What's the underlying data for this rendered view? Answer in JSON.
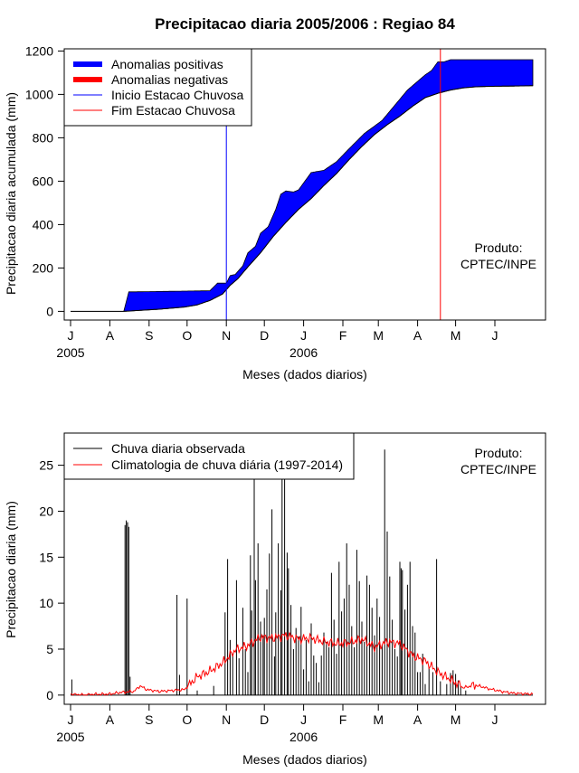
{
  "figure_title": "Precipitacao diaria 2005/2006 : Regiao 84",
  "colors": {
    "positive": "#0000ff",
    "negative": "#ff0000",
    "start_line": "#0000ff",
    "end_line": "#ff0000",
    "observed": "#000000",
    "climatology": "#ff0000"
  },
  "chart_data": [
    {
      "type": "area",
      "title": "Precipitacao diaria 2005/2006 : Regiao 84",
      "xlabel": "Meses (dados diarios)",
      "ylabel": "Precipitacao diaria acumulada (mm)",
      "xlim": [
        -5,
        375
      ],
      "ylim": [
        -40,
        1210
      ],
      "yticks": [
        0,
        200,
        400,
        600,
        800,
        1000,
        1200
      ],
      "month_ticks": [
        0,
        31,
        62,
        92,
        123,
        153,
        184,
        215,
        243,
        274,
        304,
        335
      ],
      "month_labels": [
        "J",
        "A",
        "S",
        "O",
        "N",
        "D",
        "J",
        "F",
        "M",
        "A",
        "M",
        "J"
      ],
      "year_labels": [
        {
          "day": 0,
          "text": "2005"
        },
        {
          "day": 184,
          "text": "2006"
        }
      ],
      "inicio_estacao_day": 123,
      "fim_estacao_day": 292,
      "legend": [
        "Anomalias positivas",
        "Anomalias negativas",
        "Inicio Estacao Chuvosa",
        "Fim Estacao Chuvosa"
      ],
      "annotation": [
        "Produto:",
        "CPTEC/INPE"
      ],
      "observed_cumulative": {
        "days": [
          0,
          42,
          46,
          50,
          110,
          116,
          123,
          126,
          130,
          136,
          140,
          146,
          150,
          156,
          162,
          166,
          170,
          176,
          180,
          190,
          200,
          210,
          220,
          232,
          246,
          256,
          266,
          274,
          280,
          285,
          290,
          295,
          300,
          305,
          365
        ],
        "values": [
          0,
          0,
          90,
          90,
          95,
          130,
          130,
          165,
          170,
          210,
          270,
          300,
          360,
          390,
          470,
          540,
          555,
          550,
          560,
          640,
          650,
          690,
          750,
          820,
          880,
          950,
          1020,
          1060,
          1090,
          1110,
          1150,
          1150,
          1160,
          1160,
          1160
        ]
      },
      "climatology_cumulative": {
        "days": [
          0,
          42,
          70,
          90,
          100,
          110,
          120,
          126,
          132,
          140,
          150,
          160,
          170,
          180,
          190,
          200,
          210,
          220,
          230,
          240,
          250,
          260,
          270,
          280,
          290,
          300,
          310,
          320,
          330,
          345,
          365
        ],
        "values": [
          0,
          0,
          10,
          20,
          30,
          50,
          80,
          120,
          150,
          205,
          270,
          345,
          410,
          470,
          520,
          580,
          635,
          700,
          760,
          815,
          860,
          900,
          945,
          985,
          1005,
          1020,
          1030,
          1035,
          1037,
          1038,
          1040
        ]
      }
    },
    {
      "type": "bar",
      "title": "",
      "xlabel": "Meses (dados diarios)",
      "ylabel": "Precipitacao diaria (mm)",
      "xlim": [
        -5,
        375
      ],
      "ylim": [
        -1,
        28.5
      ],
      "yticks": [
        0,
        5,
        10,
        15,
        20,
        25
      ],
      "month_ticks": [
        0,
        31,
        62,
        92,
        123,
        153,
        184,
        215,
        243,
        274,
        304,
        335
      ],
      "month_labels": [
        "J",
        "A",
        "S",
        "O",
        "N",
        "D",
        "J",
        "F",
        "M",
        "A",
        "M",
        "J"
      ],
      "year_labels": [
        {
          "day": 0,
          "text": "2005"
        },
        {
          "day": 184,
          "text": "2006"
        }
      ],
      "legend": [
        "Chuva diaria observada",
        "Climatologia de chuva diária (1997-2014)"
      ],
      "annotation": [
        "Produto:",
        "CPTEC/INPE"
      ],
      "observed_daily": [
        [
          1,
          1.7
        ],
        [
          43,
          18.5
        ],
        [
          44,
          19.0
        ],
        [
          45,
          18.8
        ],
        [
          46,
          18.3
        ],
        [
          47,
          2.0
        ],
        [
          84,
          10.9
        ],
        [
          86,
          2.2
        ],
        [
          92,
          10.5
        ],
        [
          100,
          0.5
        ],
        [
          113,
          1.0
        ],
        [
          122,
          9.0
        ],
        [
          124,
          14.8
        ],
        [
          126,
          6.0
        ],
        [
          128,
          4.5
        ],
        [
          131,
          12.5
        ],
        [
          133,
          4.0
        ],
        [
          136,
          9.5
        ],
        [
          138,
          5.0
        ],
        [
          140,
          2.5
        ],
        [
          142,
          15.2
        ],
        [
          143,
          9.2
        ],
        [
          145,
          23.8
        ],
        [
          146,
          12.5
        ],
        [
          148,
          16.5
        ],
        [
          150,
          8.0
        ],
        [
          152,
          6.5
        ],
        [
          153,
          8.4
        ],
        [
          155,
          11.5
        ],
        [
          157,
          15.4
        ],
        [
          159,
          20.2
        ],
        [
          161,
          4.2
        ],
        [
          162,
          9.0
        ],
        [
          164,
          16.5
        ],
        [
          166,
          11.4
        ],
        [
          167,
          23.9
        ],
        [
          169,
          23.8
        ],
        [
          171,
          15.5
        ],
        [
          172,
          13.8
        ],
        [
          174,
          9.8
        ],
        [
          176,
          5.0
        ],
        [
          178,
          7.3
        ],
        [
          180,
          6.4
        ],
        [
          182,
          9.6
        ],
        [
          184,
          2.8
        ],
        [
          186,
          6.0
        ],
        [
          188,
          1.5
        ],
        [
          190,
          7.8
        ],
        [
          192,
          4.3
        ],
        [
          194,
          3.5
        ],
        [
          196,
          1.4
        ],
        [
          198,
          4.3
        ],
        [
          200,
          6.8
        ],
        [
          202,
          5.8
        ],
        [
          204,
          5.2
        ],
        [
          206,
          13.3
        ],
        [
          208,
          8.2
        ],
        [
          210,
          4.5
        ],
        [
          212,
          14.5
        ],
        [
          214,
          9.1
        ],
        [
          216,
          10.5
        ],
        [
          218,
          16.5
        ],
        [
          220,
          12.0
        ],
        [
          222,
          7.5
        ],
        [
          224,
          5.2
        ],
        [
          226,
          15.8
        ],
        [
          228,
          12.4
        ],
        [
          230,
          8.0
        ],
        [
          232,
          5.8
        ],
        [
          234,
          13.0
        ],
        [
          236,
          12.0
        ],
        [
          238,
          9.5
        ],
        [
          240,
          6.5
        ],
        [
          242,
          10.5
        ],
        [
          244,
          8.5
        ],
        [
          246,
          5.5
        ],
        [
          248,
          26.7
        ],
        [
          250,
          17.8
        ],
        [
          252,
          12.9
        ],
        [
          254,
          8.2
        ],
        [
          256,
          5.0
        ],
        [
          258,
          4.2
        ],
        [
          260,
          14.5
        ],
        [
          261,
          13.8
        ],
        [
          262,
          13.6
        ],
        [
          264,
          9.3
        ],
        [
          266,
          12.0
        ],
        [
          268,
          14.5
        ],
        [
          270,
          7.5
        ],
        [
          272,
          6.8
        ],
        [
          274,
          2.5
        ],
        [
          276,
          2.5
        ],
        [
          278,
          4.5
        ],
        [
          280,
          1.2
        ],
        [
          283,
          3.0
        ],
        [
          286,
          2.5
        ],
        [
          289,
          14.8
        ],
        [
          292,
          1.5
        ],
        [
          297,
          1.2
        ],
        [
          300,
          2.4
        ],
        [
          302,
          2.7
        ],
        [
          304,
          2.3
        ],
        [
          306,
          1.6
        ],
        [
          308,
          1.0
        ],
        [
          312,
          0.5
        ]
      ],
      "climatology_daily": {
        "days": [
          0,
          10,
          20,
          30,
          40,
          50,
          55,
          60,
          70,
          80,
          90,
          100,
          110,
          120,
          130,
          140,
          150,
          160,
          170,
          180,
          190,
          200,
          210,
          220,
          230,
          240,
          250,
          260,
          270,
          280,
          290,
          300,
          310,
          320,
          330,
          340,
          350,
          365
        ],
        "values": [
          0.1,
          0.0,
          0.1,
          0.1,
          0.3,
          0.4,
          1.0,
          0.6,
          0.4,
          0.5,
          0.6,
          2.0,
          2.6,
          3.5,
          4.9,
          5.4,
          6.3,
          6.2,
          6.5,
          6.1,
          6.2,
          5.8,
          5.6,
          5.7,
          6.1,
          5.2,
          5.8,
          5.6,
          4.3,
          3.7,
          2.5,
          1.7,
          0.8,
          1.1,
          0.7,
          0.4,
          0.2,
          0.1
        ]
      }
    }
  ]
}
